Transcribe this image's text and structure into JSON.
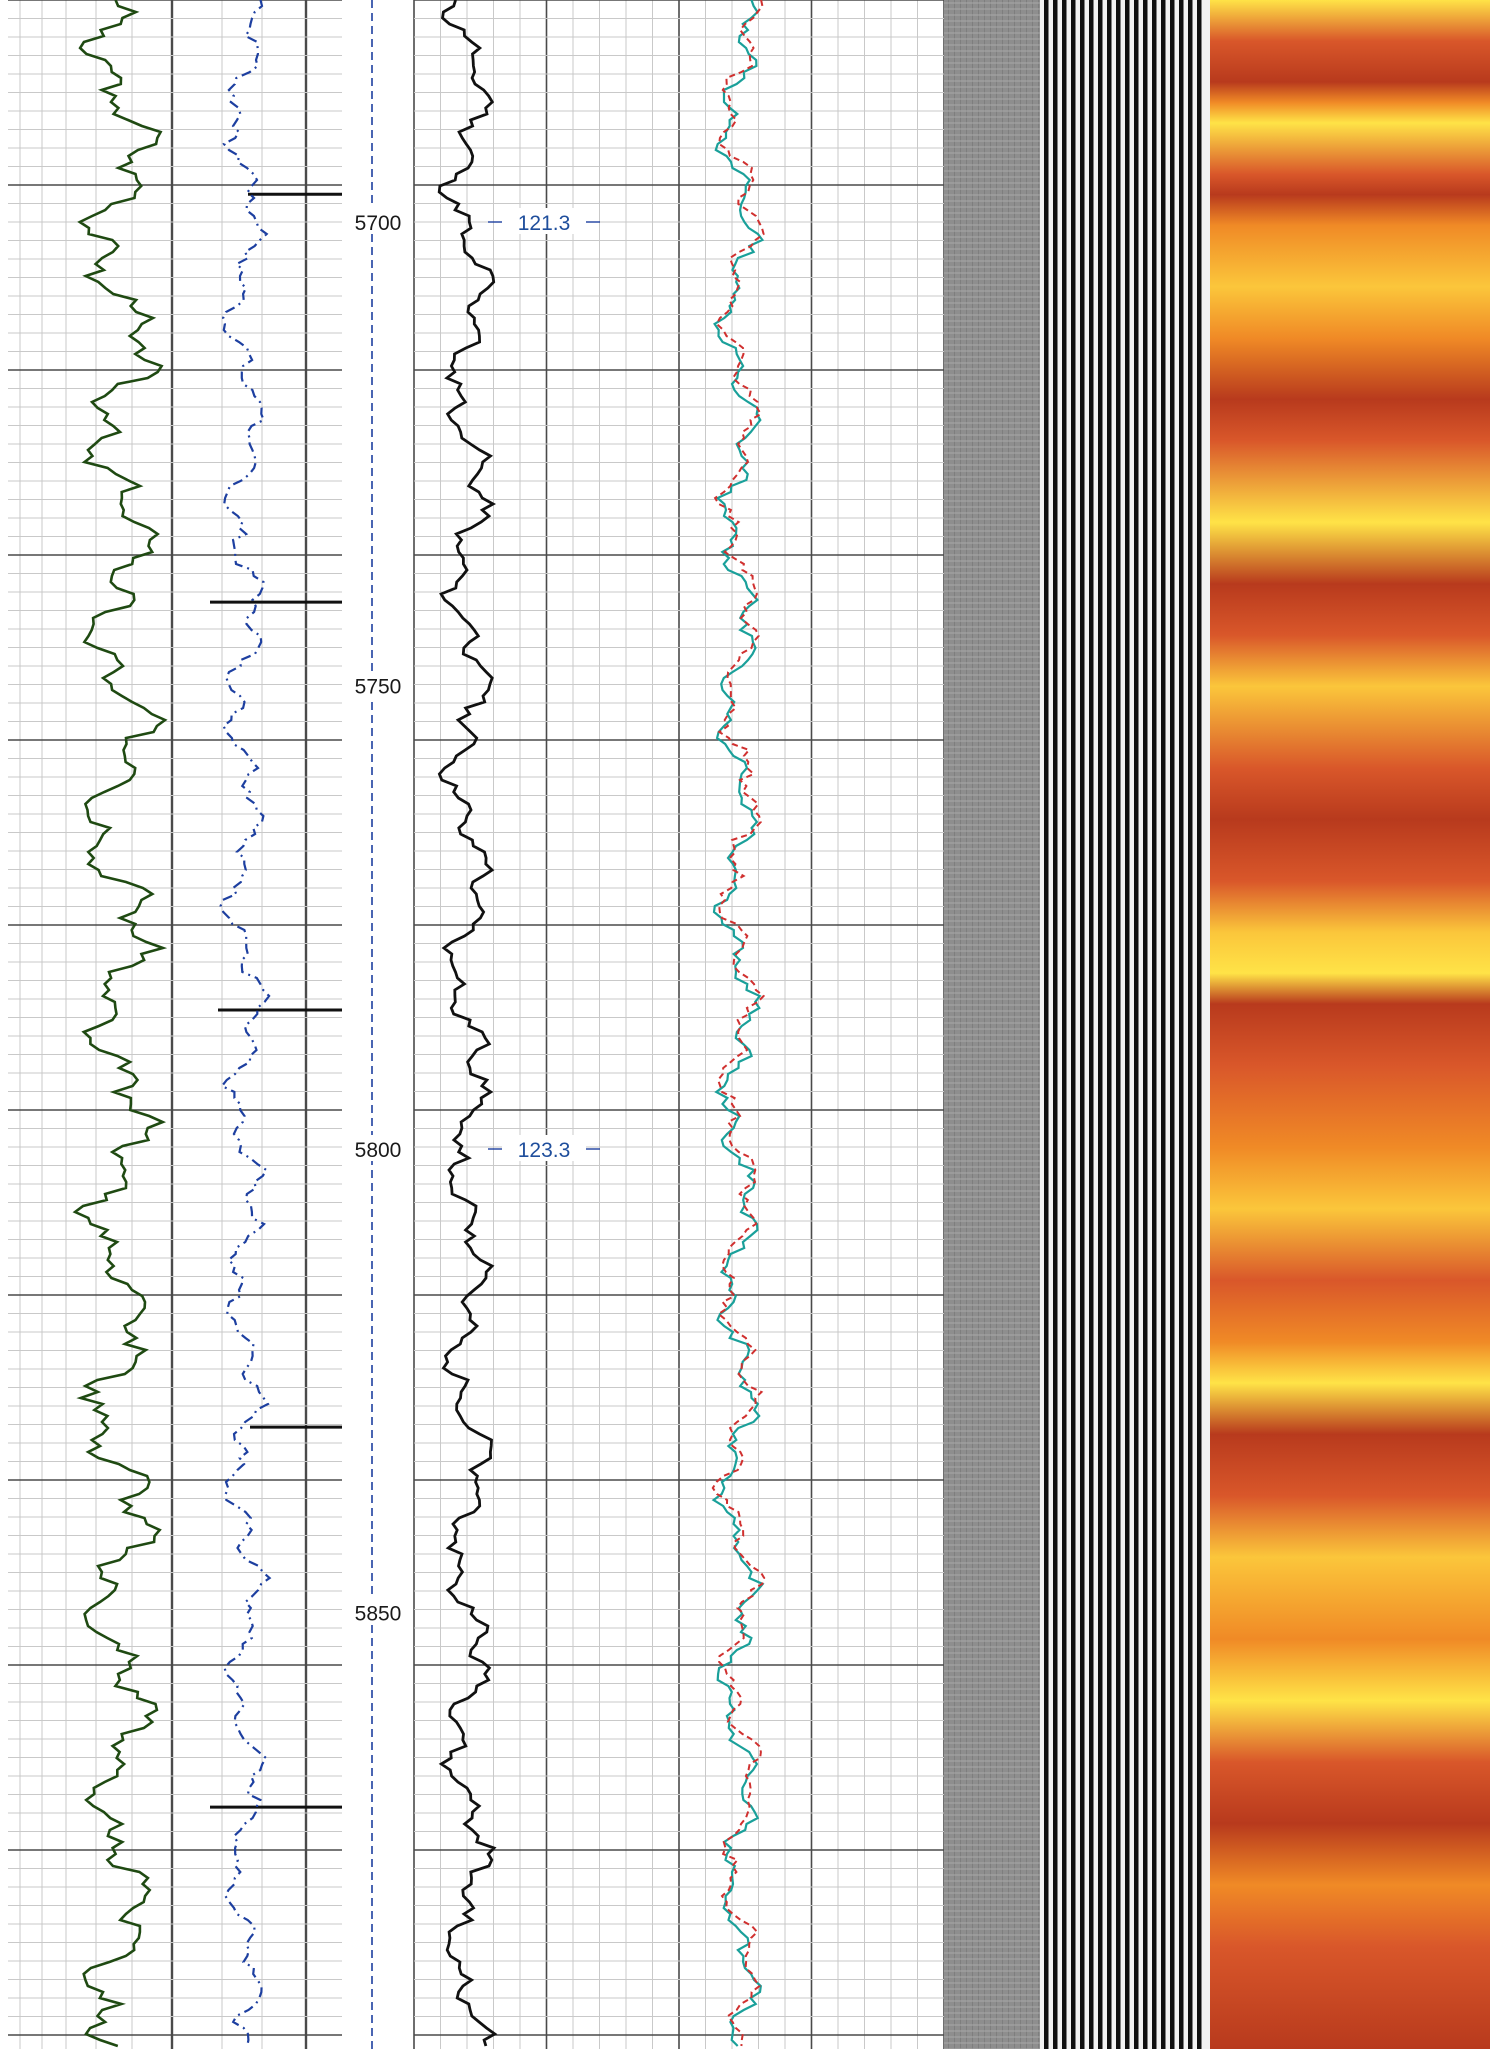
{
  "chart_data": {
    "type": "line",
    "title": "",
    "depth_axis": {
      "ticks": [
        "5700",
        "5750",
        "5800",
        "5850"
      ],
      "tick_values": [
        5700,
        5750,
        5800,
        5850
      ],
      "range": [
        5677,
        5897
      ]
    },
    "annotations": [
      {
        "depth": 5700,
        "text": "121.3"
      },
      {
        "depth": 5800,
        "text": "123.3"
      }
    ],
    "series": [
      {
        "track": 1,
        "color": "#1f4a12",
        "style": "solid",
        "note": "gamma-like curve"
      },
      {
        "track": 1,
        "color": "#1d3fa0",
        "style": "dash-dot",
        "note": "blue dashed curve"
      },
      {
        "track": 3,
        "color": "#111111",
        "style": "solid",
        "note": "black wiggly curve"
      },
      {
        "track": 3,
        "color": "#1aa09a",
        "style": "solid",
        "note": "teal curve"
      },
      {
        "track": 3,
        "color": "#d0302f",
        "style": "dashed",
        "note": "red dashed curve"
      }
    ],
    "markers": {
      "color": "#111111",
      "depths": [
        5697,
        5741,
        5785,
        5830,
        5871
      ]
    },
    "image_tracks": [
      {
        "name": "grey-band",
        "color": "#8e8e8e"
      },
      {
        "name": "striped-band",
        "colors": [
          "#0f0f0f",
          "#f2f2f2"
        ]
      },
      {
        "name": "heat-band",
        "colors": [
          "#b83a1d",
          "#d9572a",
          "#f08a26",
          "#fbc63b",
          "#ffe347"
        ]
      }
    ],
    "grid": true,
    "colors": {
      "grid_major": "#4a4a4a",
      "grid_minor": "#c9c9c9",
      "depth_line": "#1d3fa0"
    }
  }
}
